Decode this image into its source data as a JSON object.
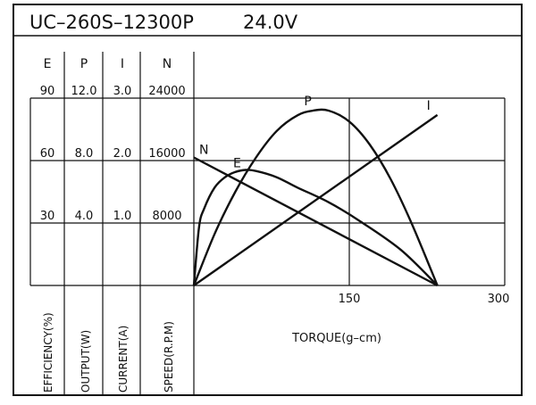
{
  "header": {
    "model": "UC–260S–12300P",
    "voltage": "24.0V"
  },
  "columns": [
    {
      "key": "E",
      "label": "E",
      "axis_label": "EFFICIENCY(%)",
      "ticks": [
        "90",
        "60",
        "30"
      ]
    },
    {
      "key": "P",
      "label": "P",
      "axis_label": "OUTPUT(W)",
      "ticks": [
        "12.0",
        "8.0",
        "4.0"
      ]
    },
    {
      "key": "I",
      "label": "I",
      "axis_label": "CURRENT(A)",
      "ticks": [
        "3.0",
        "2.0",
        "1.0"
      ]
    },
    {
      "key": "N",
      "label": "N",
      "axis_label": "SPEED(R.P.M)",
      "ticks": [
        "24000",
        "16000",
        "8000"
      ]
    }
  ],
  "chart_data": {
    "type": "line",
    "title": "UC–260S–12300P 24.0V",
    "xlabel": "TORQUE(g–cm)",
    "x_ticks": [
      "150",
      "300"
    ],
    "xlim": [
      0,
      300
    ],
    "grid": true,
    "series": [
      {
        "name": "N",
        "axis": "N",
        "unit": "R.P.M",
        "x": [
          0,
          235
        ],
        "y": [
          16400,
          0
        ]
      },
      {
        "name": "I",
        "axis": "I",
        "unit": "A",
        "x": [
          0,
          235
        ],
        "y": [
          0,
          2.73
        ]
      },
      {
        "name": "E",
        "axis": "E",
        "unit": "%",
        "x": [
          0,
          5,
          10,
          20,
          30,
          40,
          50,
          60,
          80,
          100,
          130,
          160,
          200,
          235
        ],
        "y": [
          0,
          28,
          37,
          47,
          52,
          54.5,
          55.5,
          55,
          52,
          47,
          40,
          31,
          17,
          0
        ]
      },
      {
        "name": "P",
        "axis": "P",
        "unit": "W",
        "x": [
          0,
          20,
          40,
          60,
          80,
          100,
          115,
          130,
          150,
          170,
          190,
          210,
          235
        ],
        "y": [
          0,
          3.3,
          6.0,
          8.2,
          9.9,
          10.9,
          11.2,
          11.2,
          10.5,
          9.0,
          6.8,
          4.0,
          0
        ]
      }
    ]
  }
}
